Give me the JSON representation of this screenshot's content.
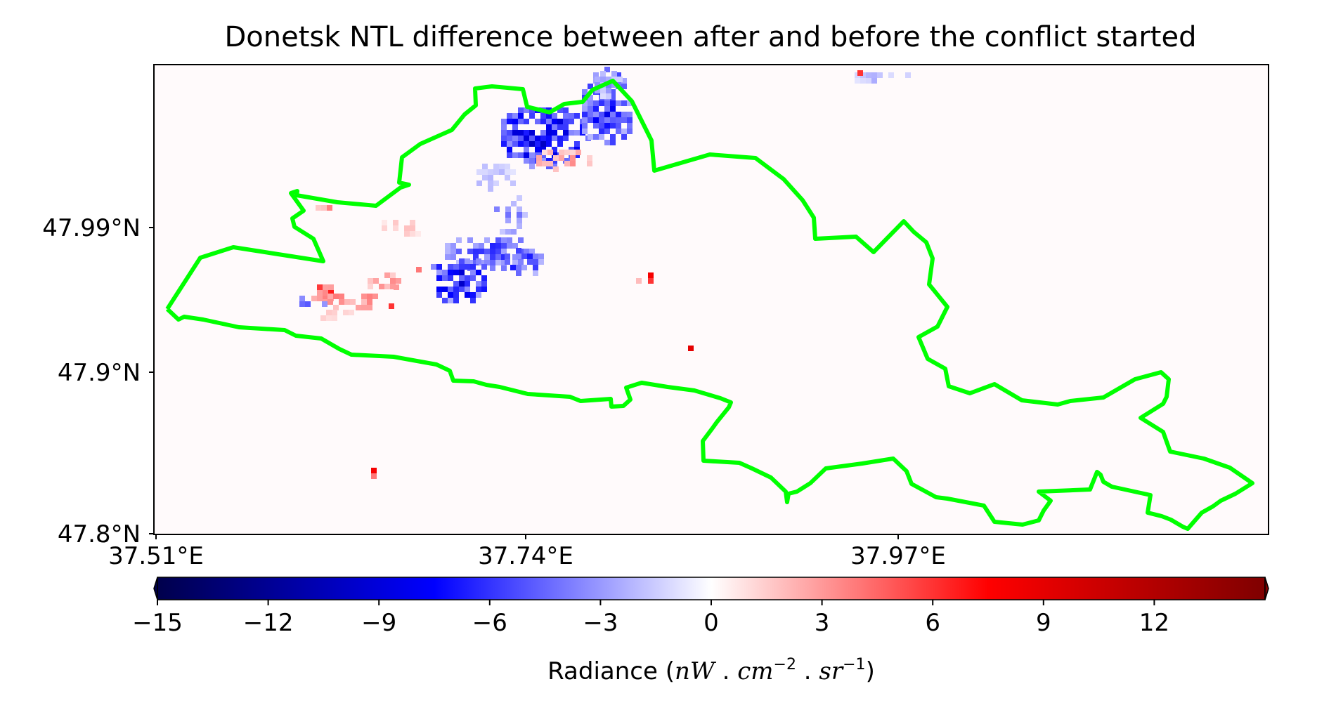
{
  "chart_data": {
    "type": "heatmap",
    "title": "Donetsk NTL difference between after and before the conflict started",
    "x_ticks": [
      "37.51°E",
      "37.74°E",
      "37.97°E"
    ],
    "y_ticks": [
      "47.99°N",
      "47.9°N",
      "47.8°N"
    ],
    "colorbar": {
      "colormap": "seismic",
      "min": -15,
      "max": 15,
      "ticks": [
        -15,
        -12,
        -9,
        -6,
        -3,
        0,
        3,
        6,
        9,
        12
      ],
      "tick_labels": [
        "−15",
        "−12",
        "−9",
        "−6",
        "−3",
        "0",
        "3",
        "6",
        "9",
        "12"
      ],
      "label_prefix": "Radiance (",
      "label_unit": {
        "nW": "nW",
        "sep1": " . ",
        "cm": "cm",
        "cm_exp": "−2",
        "sep2": " . ",
        "sr": "sr",
        "sr_exp": "−1"
      },
      "label_suffix": ")",
      "extend": "both"
    },
    "boundary_color": "#00ff00",
    "background_value": 0,
    "grid": false
  }
}
